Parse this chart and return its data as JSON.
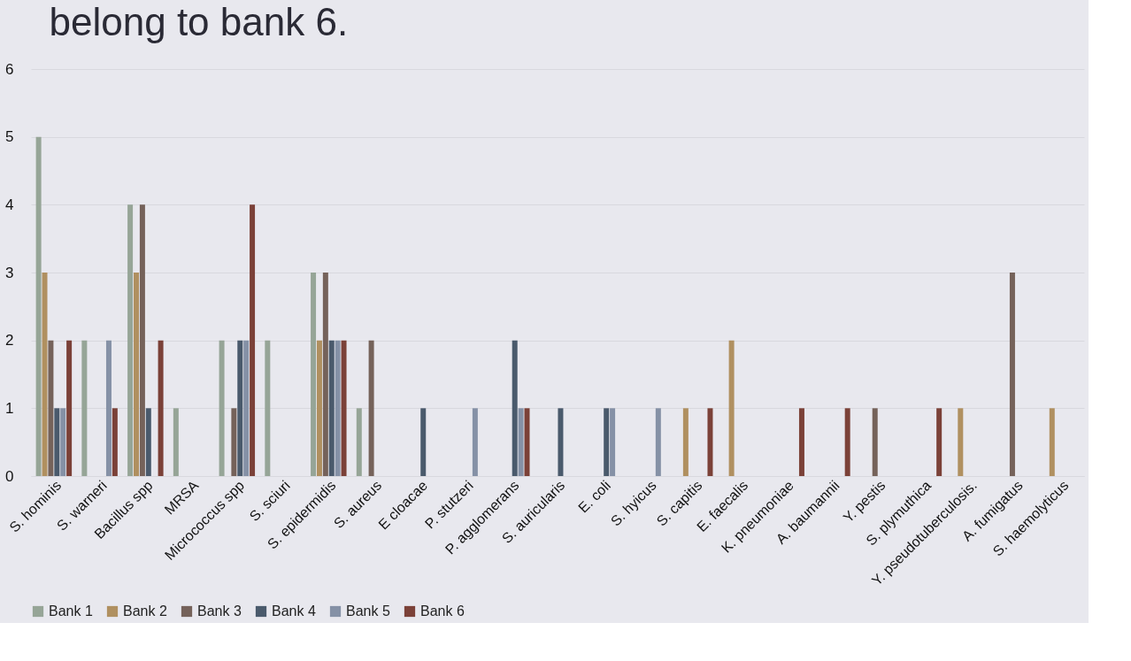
{
  "chart_data": {
    "type": "bar",
    "title": "belong to bank 6.",
    "categories": [
      "S. hominis",
      "S. warneri",
      "Bacillus spp",
      "MRSA",
      "Micrococcus spp",
      "S. sciuri",
      "S. epidermidis",
      "S. aureus",
      "E cloacae",
      "P. stutzeri",
      "P. agglomerans",
      "S. auricularis",
      "E. coli",
      "S. hyicus",
      "S. capitis",
      "E. faecalis",
      "K. pneumoniae",
      "A. baumannii",
      "Y. pestis",
      "S. plymuthica",
      "Y. pseudotuberculosis.",
      "A. fumigatus",
      "S. haemolyticus"
    ],
    "series": [
      {
        "name": "Bank 1",
        "color": "#96a597",
        "values": [
          5,
          2,
          4,
          1,
          2,
          2,
          3,
          1,
          0,
          0,
          0,
          0,
          0,
          0,
          0,
          0,
          0,
          0,
          0,
          0,
          0,
          0,
          0
        ]
      },
      {
        "name": "Bank 2",
        "color": "#b09060",
        "values": [
          3,
          0,
          3,
          0,
          0,
          0,
          2,
          0,
          0,
          0,
          0,
          0,
          0,
          0,
          1,
          2,
          0,
          0,
          0,
          0,
          1,
          0,
          1
        ]
      },
      {
        "name": "Bank 3",
        "color": "#75625a",
        "values": [
          2,
          0,
          4,
          0,
          1,
          0,
          3,
          2,
          0,
          0,
          0,
          0,
          0,
          0,
          0,
          0,
          0,
          0,
          1,
          0,
          0,
          3,
          0
        ]
      },
      {
        "name": "Bank 4",
        "color": "#4a5a6c",
        "values": [
          1,
          0,
          1,
          0,
          2,
          0,
          2,
          0,
          1,
          0,
          2,
          1,
          1,
          0,
          0,
          0,
          0,
          0,
          0,
          0,
          0,
          0,
          0
        ]
      },
      {
        "name": "Bank 5",
        "color": "#8591a6",
        "values": [
          1,
          2,
          0,
          0,
          2,
          0,
          2,
          0,
          0,
          1,
          1,
          0,
          1,
          1,
          0,
          0,
          0,
          0,
          0,
          0,
          0,
          0,
          0
        ]
      },
      {
        "name": "Bank 6",
        "color": "#7b4138",
        "values": [
          2,
          1,
          2,
          0,
          4,
          0,
          2,
          0,
          0,
          0,
          1,
          0,
          0,
          0,
          1,
          0,
          1,
          1,
          0,
          1,
          0,
          0,
          0
        ]
      }
    ],
    "ylim": [
      0,
      6
    ],
    "yticks": [
      0,
      1,
      2,
      3,
      4,
      5,
      6
    ],
    "grid": "y",
    "legend": "bottom"
  }
}
